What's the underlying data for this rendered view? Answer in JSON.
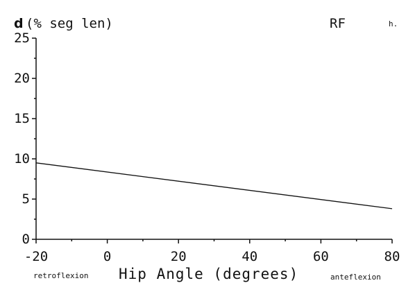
{
  "chart_data": {
    "type": "line",
    "title_bold": "d",
    "title_rest": "(% seg len)",
    "muscle_label": "RF",
    "corner_label": "h.",
    "xlabel": "Hip Angle (degrees)",
    "xlabel_left_note": "retroflexion",
    "xlabel_right_note": "anteflexion",
    "xlim": [
      -20,
      80
    ],
    "ylim": [
      0,
      25
    ],
    "x_ticks": [
      "-20",
      "0",
      "20",
      "40",
      "60",
      "80"
    ],
    "y_ticks": [
      "0",
      "5",
      "10",
      "15",
      "20",
      "25"
    ],
    "grid": false,
    "series": [
      {
        "x": [
          -20,
          80
        ],
        "y": [
          9.5,
          3.8
        ]
      }
    ]
  }
}
